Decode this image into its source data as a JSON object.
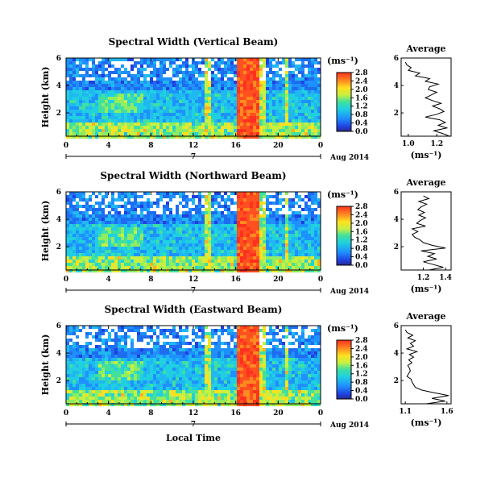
{
  "chart_data": [
    {
      "type": "heatmap",
      "title": "Spectral Width (Vertical Beam)",
      "ylabel": "Height (km)",
      "xticks": [
        "0",
        "4",
        "8",
        "12",
        "16",
        "20",
        "0"
      ],
      "yticks": [
        "2",
        "4",
        "6"
      ],
      "xlim": [
        0,
        24
      ],
      "ylim": [
        0.3,
        6
      ],
      "date_marker": "7",
      "date_label": "Aug 2014",
      "colorbar": {
        "unit": "(ms⁻¹)",
        "ticks": [
          "0.0",
          "0.4",
          "0.8",
          "1.2",
          "1.6",
          "2.0",
          "2.4",
          "2.8"
        ],
        "range": [
          0,
          2.8
        ]
      },
      "profile": {
        "title": "Average",
        "xlabel": "(ms⁻¹)",
        "xticks": [
          "1.0",
          "1.2"
        ],
        "xlim": [
          0.95,
          1.3
        ],
        "yticks": [
          "2",
          "4",
          "6"
        ],
        "height_km": [
          0.3,
          0.5,
          0.7,
          0.9,
          1.1,
          1.3,
          1.5,
          1.7,
          1.9,
          2.1,
          2.3,
          2.5,
          2.7,
          2.9,
          3.1,
          3.3,
          3.5,
          3.7,
          3.9,
          4.1,
          4.3,
          4.5,
          4.7,
          4.9,
          5.1,
          5.3,
          5.5,
          5.7
        ],
        "values": [
          1.29,
          1.24,
          1.18,
          1.27,
          1.21,
          1.26,
          1.22,
          1.12,
          1.2,
          1.25,
          1.22,
          1.17,
          1.23,
          1.17,
          1.12,
          1.16,
          1.2,
          1.14,
          1.15,
          1.21,
          1.12,
          1.15,
          1.05,
          1.08,
          1.0,
          1.02,
          0.99,
          0.98
        ]
      }
    },
    {
      "type": "heatmap",
      "title": "Spectral Width (Northward Beam)",
      "ylabel": "Height (km)",
      "xticks": [
        "0",
        "4",
        "8",
        "12",
        "16",
        "20",
        "0"
      ],
      "yticks": [
        "2",
        "4",
        "6"
      ],
      "xlim": [
        0,
        24
      ],
      "ylim": [
        0.3,
        6
      ],
      "date_marker": "7",
      "date_label": "Aug 2014",
      "colorbar": {
        "unit": "(ms⁻¹)",
        "ticks": [
          "0.0",
          "0.4",
          "0.8",
          "1.2",
          "1.6",
          "2.0",
          "2.4",
          "2.8"
        ],
        "range": [
          0,
          2.8
        ]
      },
      "profile": {
        "title": "Average",
        "xlabel": "(ms⁻¹)",
        "xticks": [
          "1.2",
          "1.4"
        ],
        "xlim": [
          1.0,
          1.45
        ],
        "yticks": [
          "2",
          "4",
          "6"
        ],
        "height_km": [
          0.3,
          0.5,
          0.7,
          0.9,
          1.1,
          1.3,
          1.5,
          1.7,
          1.9,
          2.1,
          2.3,
          2.5,
          2.7,
          2.9,
          3.1,
          3.3,
          3.5,
          3.7,
          3.9,
          4.1,
          4.3,
          4.5,
          4.7,
          4.9,
          5.1,
          5.3,
          5.5,
          5.7
        ],
        "values": [
          1.25,
          1.38,
          1.29,
          1.2,
          1.32,
          1.24,
          1.3,
          1.18,
          1.4,
          1.28,
          1.2,
          1.17,
          1.12,
          1.1,
          1.15,
          1.1,
          1.22,
          1.14,
          1.17,
          1.22,
          1.16,
          1.21,
          1.15,
          1.18,
          1.23,
          1.16,
          1.25,
          1.2
        ]
      }
    },
    {
      "type": "heatmap",
      "title": "Spectral Width (Eastward Beam)",
      "ylabel": "Height (km)",
      "xlabel": "Local Time",
      "xticks": [
        "0",
        "4",
        "8",
        "12",
        "16",
        "20",
        "0"
      ],
      "yticks": [
        "2",
        "4",
        "6"
      ],
      "xlim": [
        0,
        24
      ],
      "ylim": [
        0.3,
        6
      ],
      "date_marker": "7",
      "date_label": "Aug 2014",
      "colorbar": {
        "unit": "(ms⁻¹)",
        "ticks": [
          "0.0",
          "0.4",
          "0.8",
          "1.2",
          "1.6",
          "2.0",
          "2.4",
          "2.8"
        ],
        "range": [
          0,
          2.8
        ]
      },
      "profile": {
        "title": "Average",
        "xlabel": "(ms⁻¹)",
        "xticks": [
          "1.1",
          "1.6"
        ],
        "xlim": [
          1.05,
          1.65
        ],
        "yticks": [
          "2",
          "4",
          "6"
        ],
        "height_km": [
          0.3,
          0.5,
          0.7,
          0.9,
          1.1,
          1.3,
          1.5,
          1.7,
          1.9,
          2.1,
          2.3,
          2.5,
          2.7,
          2.9,
          3.1,
          3.3,
          3.5,
          3.7,
          3.9,
          4.1,
          4.3,
          4.5,
          4.7,
          4.9,
          5.1,
          5.3,
          5.5,
          5.7
        ],
        "values": [
          1.35,
          1.58,
          1.42,
          1.62,
          1.45,
          1.3,
          1.22,
          1.2,
          1.18,
          1.17,
          1.12,
          1.14,
          1.16,
          1.15,
          1.13,
          1.18,
          1.14,
          1.2,
          1.15,
          1.24,
          1.12,
          1.2,
          1.16,
          1.22,
          1.13,
          1.19,
          1.12,
          1.1
        ]
      }
    }
  ]
}
